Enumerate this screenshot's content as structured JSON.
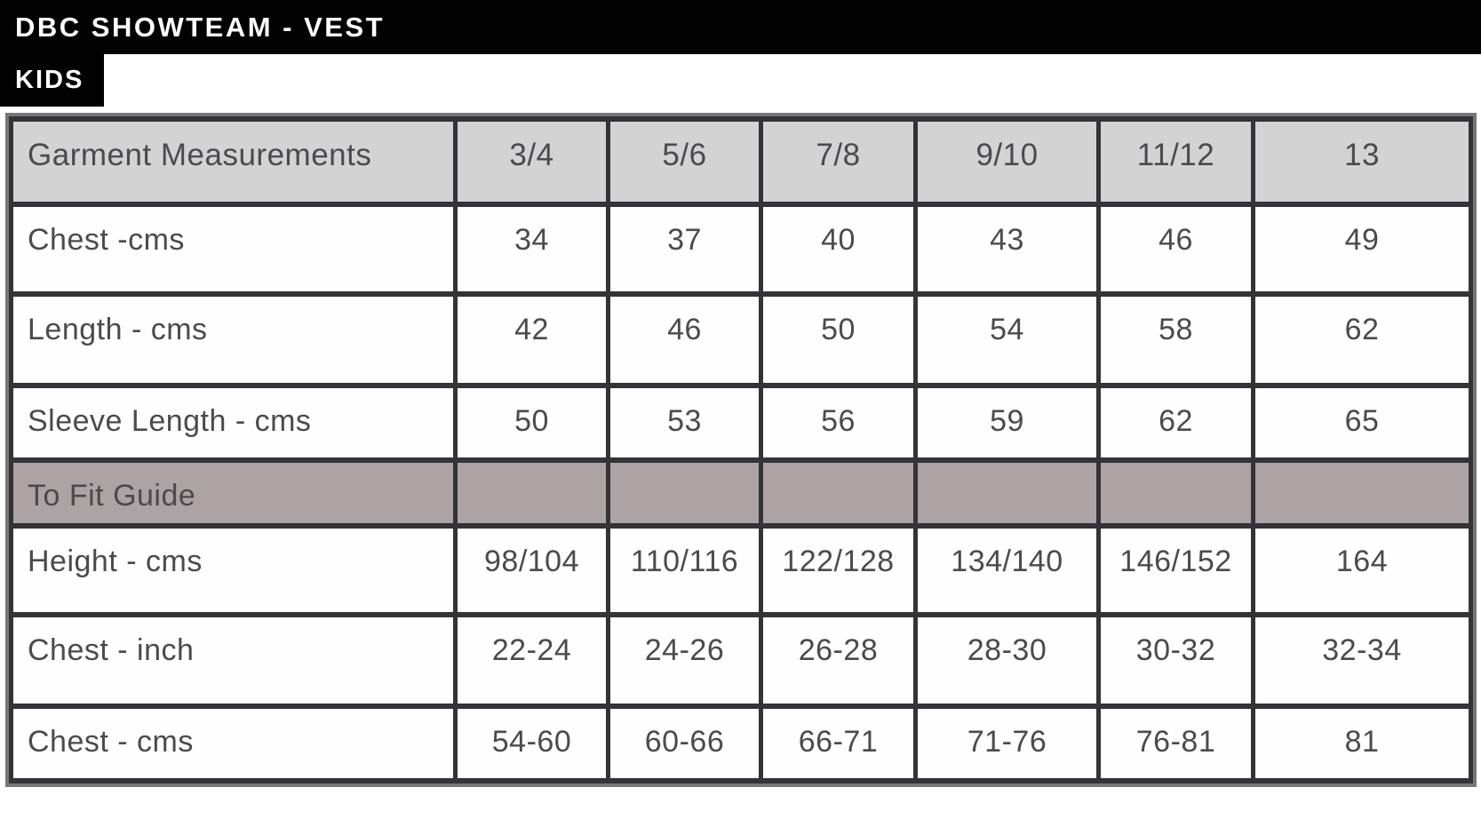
{
  "banner": {
    "title": "DBC SHOWTEAM - VEST",
    "tag": "KIDS"
  },
  "size_table": {
    "columns": [
      "Garment Measurements",
      "3/4",
      "5/6",
      "7/8",
      "9/10",
      "11/12",
      "13"
    ],
    "rows": [
      {
        "type": "data",
        "label": "Chest -cms",
        "values": [
          "34",
          "37",
          "40",
          "43",
          "46",
          "49"
        ]
      },
      {
        "type": "data",
        "label": "Length - cms",
        "values": [
          "42",
          "46",
          "50",
          "54",
          "58",
          "62"
        ]
      },
      {
        "type": "data",
        "label": "Sleeve Length - cms",
        "values": [
          "50",
          "53",
          "56",
          "59",
          "62",
          "65"
        ]
      },
      {
        "type": "section",
        "label": "To Fit Guide",
        "values": [
          "",
          "",
          "",
          "",
          "",
          ""
        ]
      },
      {
        "type": "data",
        "label": "Height - cms",
        "values": [
          "98/104",
          "110/116",
          "122/128",
          "134/140",
          "146/152",
          "164"
        ]
      },
      {
        "type": "data",
        "label": "Chest - inch",
        "values": [
          "22-24",
          "24-26",
          "26-28",
          "28-30",
          "30-32",
          "32-34"
        ]
      },
      {
        "type": "data",
        "label": "Chest - cms",
        "values": [
          "54-60",
          "60-66",
          "66-71",
          "71-76",
          "76-81",
          "81"
        ]
      }
    ],
    "colors": {
      "banner_bg": "#020202",
      "banner_text": "#ffffff",
      "header_row_bg": "#d3d3d4",
      "section_row_bg": "#aba3a4",
      "cell_bg": "#fefefe",
      "border_dark": "#343338",
      "border_gray": "#77777b",
      "text": "#4b4a4e"
    }
  }
}
